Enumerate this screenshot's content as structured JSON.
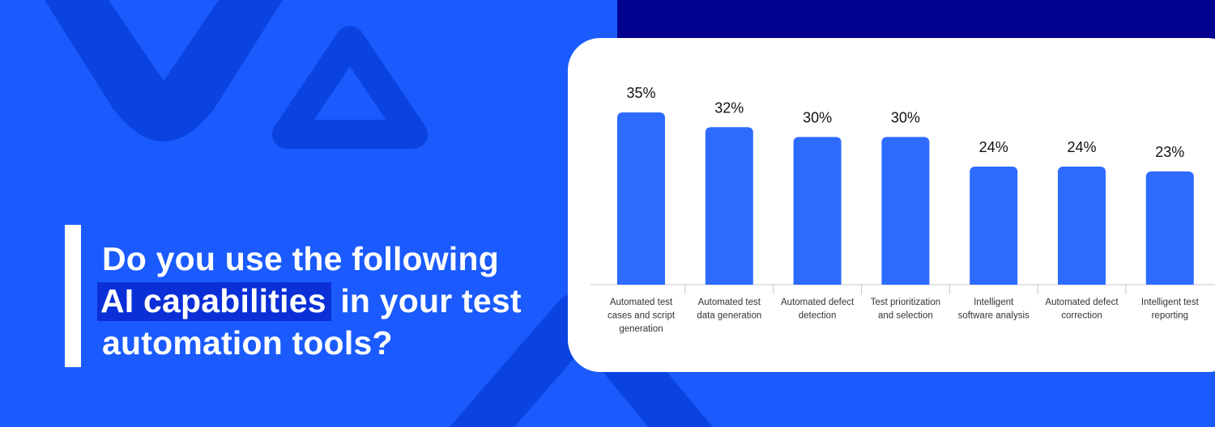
{
  "banner": {
    "question_line1": "Do you use the following",
    "question_highlight": "AI capabilities",
    "question_line2_rest": "in your test",
    "question_line3": "automation tools?"
  },
  "colors": {
    "background": "#1b5bfd",
    "navy": "#02008e",
    "bar": "#2d6bff",
    "highlight": "#0a2fd6"
  },
  "chart_data": {
    "type": "bar",
    "categories": [
      "Automated test cases and script generation",
      "Automated test data generation",
      "Automated defect detection",
      "Test prioritization and selection",
      "Intelligent software analysis",
      "Automated defect correction",
      "Intelligent test reporting"
    ],
    "category_lines": [
      [
        "Automated test",
        "cases and script",
        "generation"
      ],
      [
        "Automated test",
        "data generation"
      ],
      [
        "Automated defect",
        "detection"
      ],
      [
        "Test prioritization",
        "and selection"
      ],
      [
        "Intelligent",
        "software analysis"
      ],
      [
        "Automated defect",
        "correction"
      ],
      [
        "Intelligent test",
        "reporting"
      ]
    ],
    "values": [
      35,
      32,
      30,
      30,
      24,
      24,
      23
    ],
    "value_labels": [
      "35%",
      "32%",
      "30%",
      "30%",
      "24%",
      "24%",
      "23%"
    ],
    "unit": "%",
    "ylim": [
      0,
      35
    ],
    "title": "",
    "xlabel": "",
    "ylabel": "",
    "grid": false,
    "legend": "none"
  }
}
